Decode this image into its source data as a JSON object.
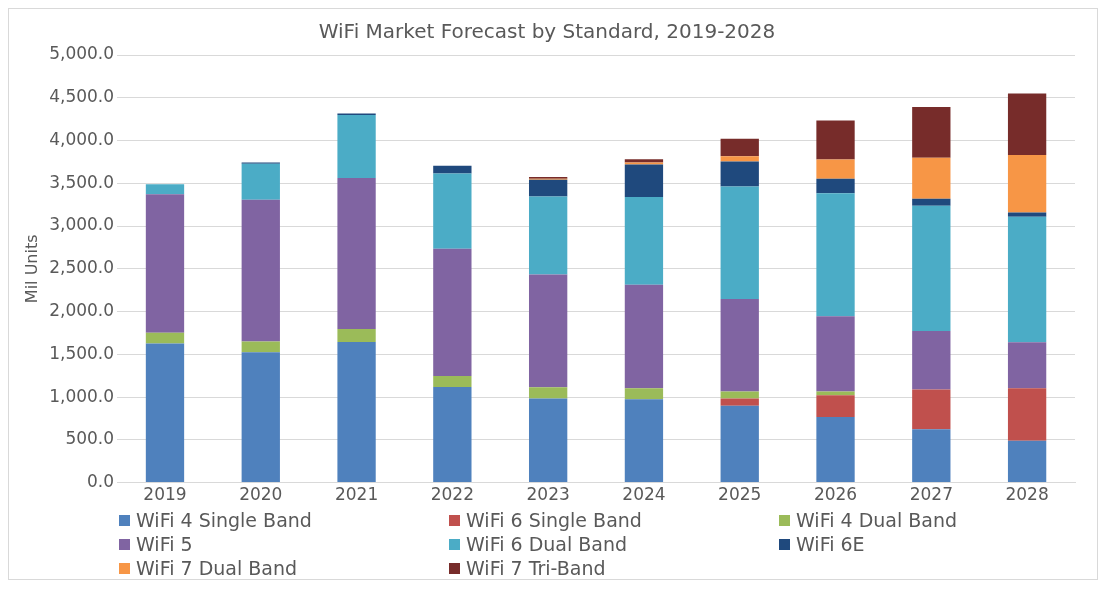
{
  "chart_data": {
    "type": "bar",
    "title": "WiFi Market Forecast by Standard, 2019-2028",
    "ylabel": "Mil Units",
    "stacked": true,
    "grid": "y",
    "legend": "bottom",
    "categories": [
      "2019",
      "2020",
      "2021",
      "2022",
      "2023",
      "2024",
      "2025",
      "2026",
      "2027",
      "2028"
    ],
    "ylim": [
      0,
      5000
    ],
    "yticks": [
      {
        "value": 0,
        "label": "0.0"
      },
      {
        "value": 500,
        "label": "500.0"
      },
      {
        "value": 1000,
        "label": "1,000.0"
      },
      {
        "value": 1500,
        "label": "1,500.0"
      },
      {
        "value": 2000,
        "label": "2,000.0"
      },
      {
        "value": 2500,
        "label": "2,500.0"
      },
      {
        "value": 3000,
        "label": "3,000.0"
      },
      {
        "value": 3500,
        "label": "3,500.0"
      },
      {
        "value": 4000,
        "label": "4,000.0"
      },
      {
        "value": 4500,
        "label": "4,500.0"
      },
      {
        "value": 5000,
        "label": "5,000.0"
      }
    ],
    "series": [
      {
        "name": "WiFi 4 Single Band",
        "color": "#4f81bd",
        "values": [
          1626,
          1525,
          1645,
          1118,
          984,
          974,
          898,
          768,
          624,
          490
        ]
      },
      {
        "name": "WiFi 6 Single Band",
        "color": "#c0504d",
        "values": [
          0,
          0,
          0,
          0,
          0,
          0,
          86,
          254,
          466,
          614
        ]
      },
      {
        "name": "WiFi 4 Dual Band",
        "color": "#9bbb59",
        "values": [
          125,
          124,
          152,
          129,
          130,
          130,
          82,
          44,
          null,
          0
        ]
      },
      {
        "name": "WiFi 5",
        "color": "#8064a2",
        "values": [
          1622,
          1659,
          1765,
          1488,
          1320,
          1210,
          1080,
          878,
          682,
          538
        ]
      },
      {
        "name": "WiFi 6 Dual Band",
        "color": "#4bacc6",
        "values": [
          115,
          420,
          735,
          878,
          912,
          1027,
          1315,
          1440,
          1464,
          1468
        ]
      },
      {
        "name": "WiFi 6E",
        "color": "#1f497d",
        "values": [
          0,
          14,
          18,
          92,
          196,
          379,
          293,
          168,
          82,
          48
        ]
      },
      {
        "name": "WiFi 7 Dual Band",
        "color": "#f79646",
        "values": [
          0,
          0,
          0,
          0,
          10,
          24,
          62,
          226,
          480,
          672
        ]
      },
      {
        "name": "WiFi 7 Tri-Band",
        "color": "#772c2a",
        "values": [
          0,
          0,
          0,
          0,
          21,
          38,
          206,
          456,
          595,
          720
        ]
      }
    ]
  }
}
